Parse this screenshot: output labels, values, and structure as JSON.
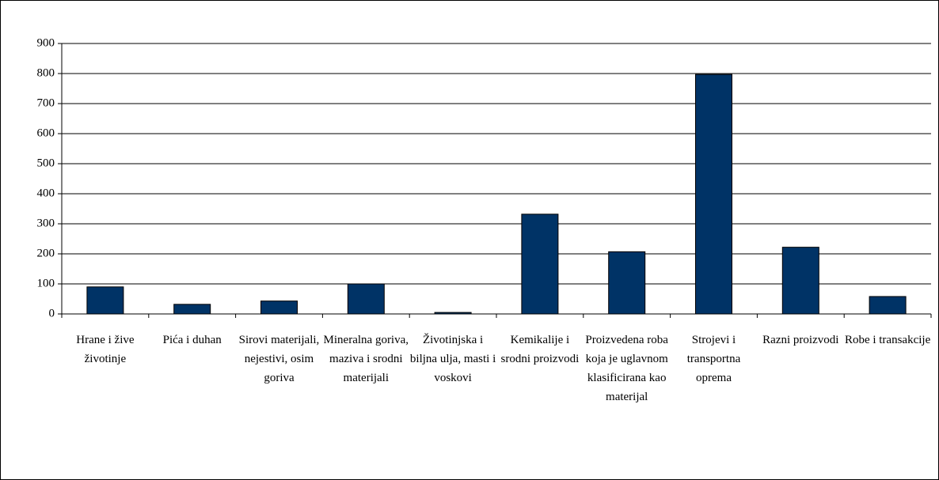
{
  "chart_data": {
    "type": "bar",
    "categories": [
      "Hrane i žive životinje",
      "Pića i duhan",
      "Sirovi materijali, nejestivi, osim goriva",
      "Mineralna goriva, maziva i srodni materijali",
      "Životinjska i biljna ulja, masti i voskovi",
      "Kemikalije i srodni proizvodi",
      "Proizvedena roba koja je uglavnom klasificirana kao materijal",
      "Strojevi i transportna oprema",
      "Razni proizvodi",
      "Robe i transakcije"
    ],
    "values": [
      90,
      32,
      43,
      100,
      5,
      332,
      207,
      797,
      222,
      58
    ],
    "color": "#003366",
    "ylim": [
      0,
      900
    ],
    "yticks": [
      0,
      100,
      200,
      300,
      400,
      500,
      600,
      700,
      800,
      900
    ],
    "grid": true
  }
}
